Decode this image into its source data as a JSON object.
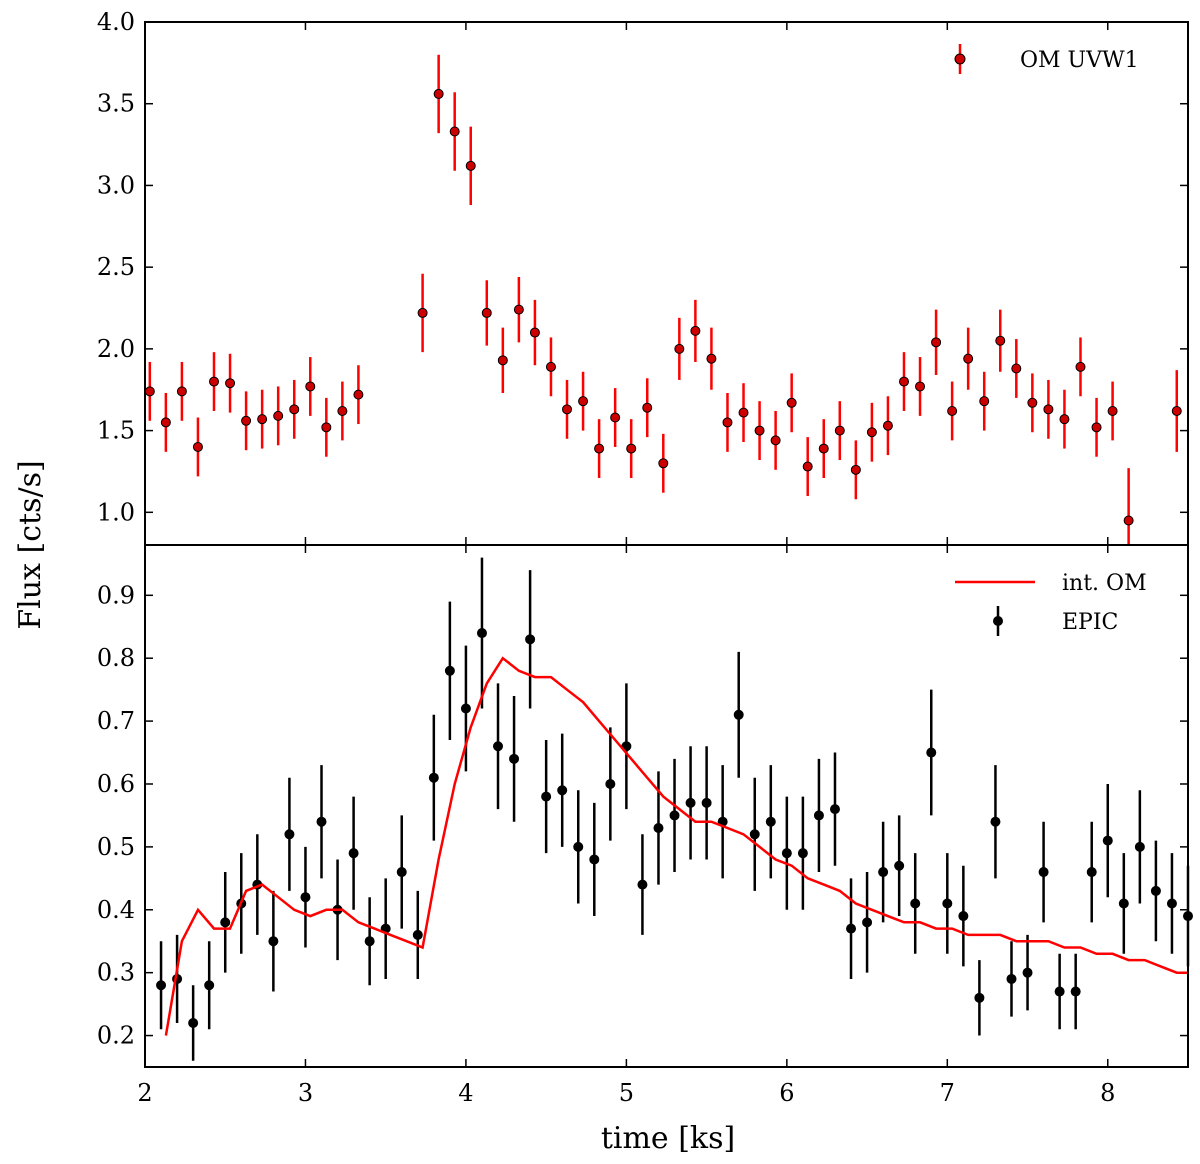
{
  "chart_data": [
    {
      "type": "scatter",
      "panel": "top",
      "xlim": [
        2.0,
        8.5
      ],
      "ylim": [
        0.8,
        4.0
      ],
      "yticks": [
        "1.0",
        "1.5",
        "2.0",
        "2.5",
        "3.0",
        "3.5",
        "4.0"
      ],
      "ylabel": "Flux [cts/s]",
      "legend": {
        "placement": "top-right",
        "entries": [
          "OM UVW1"
        ]
      },
      "series": [
        {
          "name": "OM UVW1",
          "color": "#ff0000",
          "x": [
            2.03,
            2.13,
            2.23,
            2.33,
            2.43,
            2.53,
            2.63,
            2.73,
            2.83,
            2.93,
            3.03,
            3.13,
            3.23,
            3.33,
            3.73,
            3.83,
            3.93,
            4.03,
            4.13,
            4.23,
            4.33,
            4.43,
            4.53,
            4.63,
            4.73,
            4.83,
            4.93,
            5.03,
            5.13,
            5.23,
            5.33,
            5.43,
            5.53,
            5.63,
            5.73,
            5.83,
            5.93,
            6.03,
            6.13,
            6.23,
            6.33,
            6.43,
            6.53,
            6.63,
            6.73,
            6.83,
            6.93,
            7.03,
            7.13,
            7.23,
            7.33,
            7.43,
            7.53,
            7.63,
            7.73,
            7.83,
            7.93,
            8.03,
            8.13,
            8.43
          ],
          "y": [
            1.74,
            1.55,
            1.74,
            1.4,
            1.8,
            1.79,
            1.56,
            1.57,
            1.59,
            1.63,
            1.77,
            1.52,
            1.62,
            1.72,
            2.22,
            3.56,
            3.33,
            3.12,
            2.22,
            1.93,
            2.24,
            2.1,
            1.89,
            1.63,
            1.68,
            1.39,
            1.58,
            1.39,
            1.64,
            1.3,
            2.0,
            2.11,
            1.94,
            1.55,
            1.61,
            1.5,
            1.44,
            1.67,
            1.28,
            1.39,
            1.5,
            1.26,
            1.49,
            1.53,
            1.8,
            1.77,
            2.04,
            1.62,
            1.94,
            1.68,
            2.05,
            1.88,
            1.67,
            1.63,
            1.57,
            1.89,
            1.52,
            1.62,
            0.95,
            1.62
          ],
          "yerr": [
            0.18,
            0.18,
            0.18,
            0.18,
            0.18,
            0.18,
            0.18,
            0.18,
            0.18,
            0.18,
            0.18,
            0.18,
            0.18,
            0.18,
            0.24,
            0.24,
            0.24,
            0.24,
            0.2,
            0.2,
            0.2,
            0.2,
            0.18,
            0.18,
            0.18,
            0.18,
            0.18,
            0.18,
            0.18,
            0.18,
            0.19,
            0.19,
            0.19,
            0.18,
            0.18,
            0.18,
            0.18,
            0.18,
            0.18,
            0.18,
            0.18,
            0.18,
            0.18,
            0.18,
            0.18,
            0.18,
            0.2,
            0.18,
            0.19,
            0.18,
            0.19,
            0.18,
            0.18,
            0.18,
            0.18,
            0.18,
            0.18,
            0.18,
            0.32,
            0.25
          ]
        }
      ]
    },
    {
      "type": "scatter",
      "panel": "bottom",
      "xlim": [
        2.0,
        8.5
      ],
      "ylim": [
        0.15,
        0.98
      ],
      "xticks": [
        "2",
        "3",
        "4",
        "5",
        "6",
        "7",
        "8"
      ],
      "yticks": [
        "0.2",
        "0.3",
        "0.4",
        "0.5",
        "0.6",
        "0.7",
        "0.8",
        "0.9"
      ],
      "xlabel": "time [ks]",
      "legend": {
        "placement": "top-right",
        "entries": [
          "int. OM",
          "EPIC"
        ]
      },
      "series": [
        {
          "name": "EPIC",
          "color": "#000000",
          "x": [
            2.1,
            2.2,
            2.3,
            2.4,
            2.5,
            2.6,
            2.7,
            2.8,
            2.9,
            3.0,
            3.1,
            3.2,
            3.3,
            3.4,
            3.5,
            3.6,
            3.7,
            3.8,
            3.9,
            4.0,
            4.1,
            4.2,
            4.3,
            4.4,
            4.5,
            4.6,
            4.7,
            4.8,
            4.9,
            5.0,
            5.1,
            5.2,
            5.3,
            5.4,
            5.5,
            5.6,
            5.7,
            5.8,
            5.9,
            6.0,
            6.1,
            6.2,
            6.3,
            6.4,
            6.5,
            6.6,
            6.7,
            6.8,
            6.9,
            7.0,
            7.1,
            7.2,
            7.3,
            7.4,
            7.5,
            7.6,
            7.7,
            7.8,
            7.9,
            8.0,
            8.1,
            8.2,
            8.3,
            8.4,
            8.5
          ],
          "y": [
            0.28,
            0.29,
            0.22,
            0.28,
            0.38,
            0.41,
            0.44,
            0.35,
            0.52,
            0.42,
            0.54,
            0.4,
            0.49,
            0.35,
            0.37,
            0.46,
            0.36,
            0.61,
            0.78,
            0.72,
            0.84,
            0.66,
            0.64,
            0.83,
            0.58,
            0.59,
            0.5,
            0.48,
            0.6,
            0.66,
            0.44,
            0.53,
            0.55,
            0.57,
            0.57,
            0.54,
            0.71,
            0.52,
            0.54,
            0.49,
            0.49,
            0.55,
            0.56,
            0.37,
            0.38,
            0.46,
            0.47,
            0.41,
            0.65,
            0.41,
            0.39,
            0.26,
            0.54,
            0.29,
            0.3,
            0.46,
            0.27,
            0.27,
            0.46,
            0.51,
            0.41,
            0.5,
            0.43,
            0.41,
            0.39
          ],
          "yerr": [
            0.07,
            0.07,
            0.06,
            0.07,
            0.08,
            0.08,
            0.08,
            0.08,
            0.09,
            0.08,
            0.09,
            0.08,
            0.09,
            0.07,
            0.08,
            0.09,
            0.07,
            0.1,
            0.11,
            0.1,
            0.12,
            0.1,
            0.1,
            0.11,
            0.09,
            0.09,
            0.09,
            0.09,
            0.09,
            0.1,
            0.08,
            0.09,
            0.09,
            0.09,
            0.09,
            0.09,
            0.1,
            0.09,
            0.09,
            0.09,
            0.09,
            0.09,
            0.09,
            0.08,
            0.08,
            0.08,
            0.08,
            0.08,
            0.1,
            0.08,
            0.08,
            0.06,
            0.09,
            0.06,
            0.06,
            0.08,
            0.06,
            0.06,
            0.08,
            0.09,
            0.08,
            0.09,
            0.08,
            0.08,
            0.08
          ]
        },
        {
          "name": "int. OM",
          "color": "#ff0000",
          "x": [
            2.13,
            2.23,
            2.33,
            2.43,
            2.53,
            2.63,
            2.73,
            2.83,
            2.93,
            3.03,
            3.13,
            3.23,
            3.33,
            3.43,
            3.53,
            3.63,
            3.73,
            3.83,
            3.93,
            4.03,
            4.13,
            4.23,
            4.33,
            4.43,
            4.53,
            4.63,
            4.73,
            4.83,
            4.93,
            5.03,
            5.13,
            5.23,
            5.33,
            5.43,
            5.53,
            5.63,
            5.73,
            5.83,
            5.93,
            6.03,
            6.13,
            6.23,
            6.33,
            6.43,
            6.53,
            6.63,
            6.73,
            6.83,
            6.93,
            7.03,
            7.13,
            7.23,
            7.33,
            7.43,
            7.53,
            7.63,
            7.73,
            7.83,
            7.93,
            8.03,
            8.13,
            8.23,
            8.33,
            8.43,
            8.5
          ],
          "y": [
            0.2,
            0.35,
            0.4,
            0.37,
            0.37,
            0.43,
            0.44,
            0.42,
            0.4,
            0.39,
            0.4,
            0.4,
            0.38,
            0.37,
            0.36,
            0.35,
            0.34,
            0.48,
            0.6,
            0.69,
            0.76,
            0.8,
            0.78,
            0.77,
            0.77,
            0.75,
            0.73,
            0.7,
            0.67,
            0.64,
            0.61,
            0.58,
            0.56,
            0.54,
            0.54,
            0.53,
            0.52,
            0.5,
            0.48,
            0.47,
            0.45,
            0.44,
            0.43,
            0.41,
            0.4,
            0.39,
            0.38,
            0.38,
            0.37,
            0.37,
            0.36,
            0.36,
            0.36,
            0.35,
            0.35,
            0.35,
            0.34,
            0.34,
            0.33,
            0.33,
            0.32,
            0.32,
            0.31,
            0.3,
            0.3
          ]
        }
      ]
    }
  ]
}
